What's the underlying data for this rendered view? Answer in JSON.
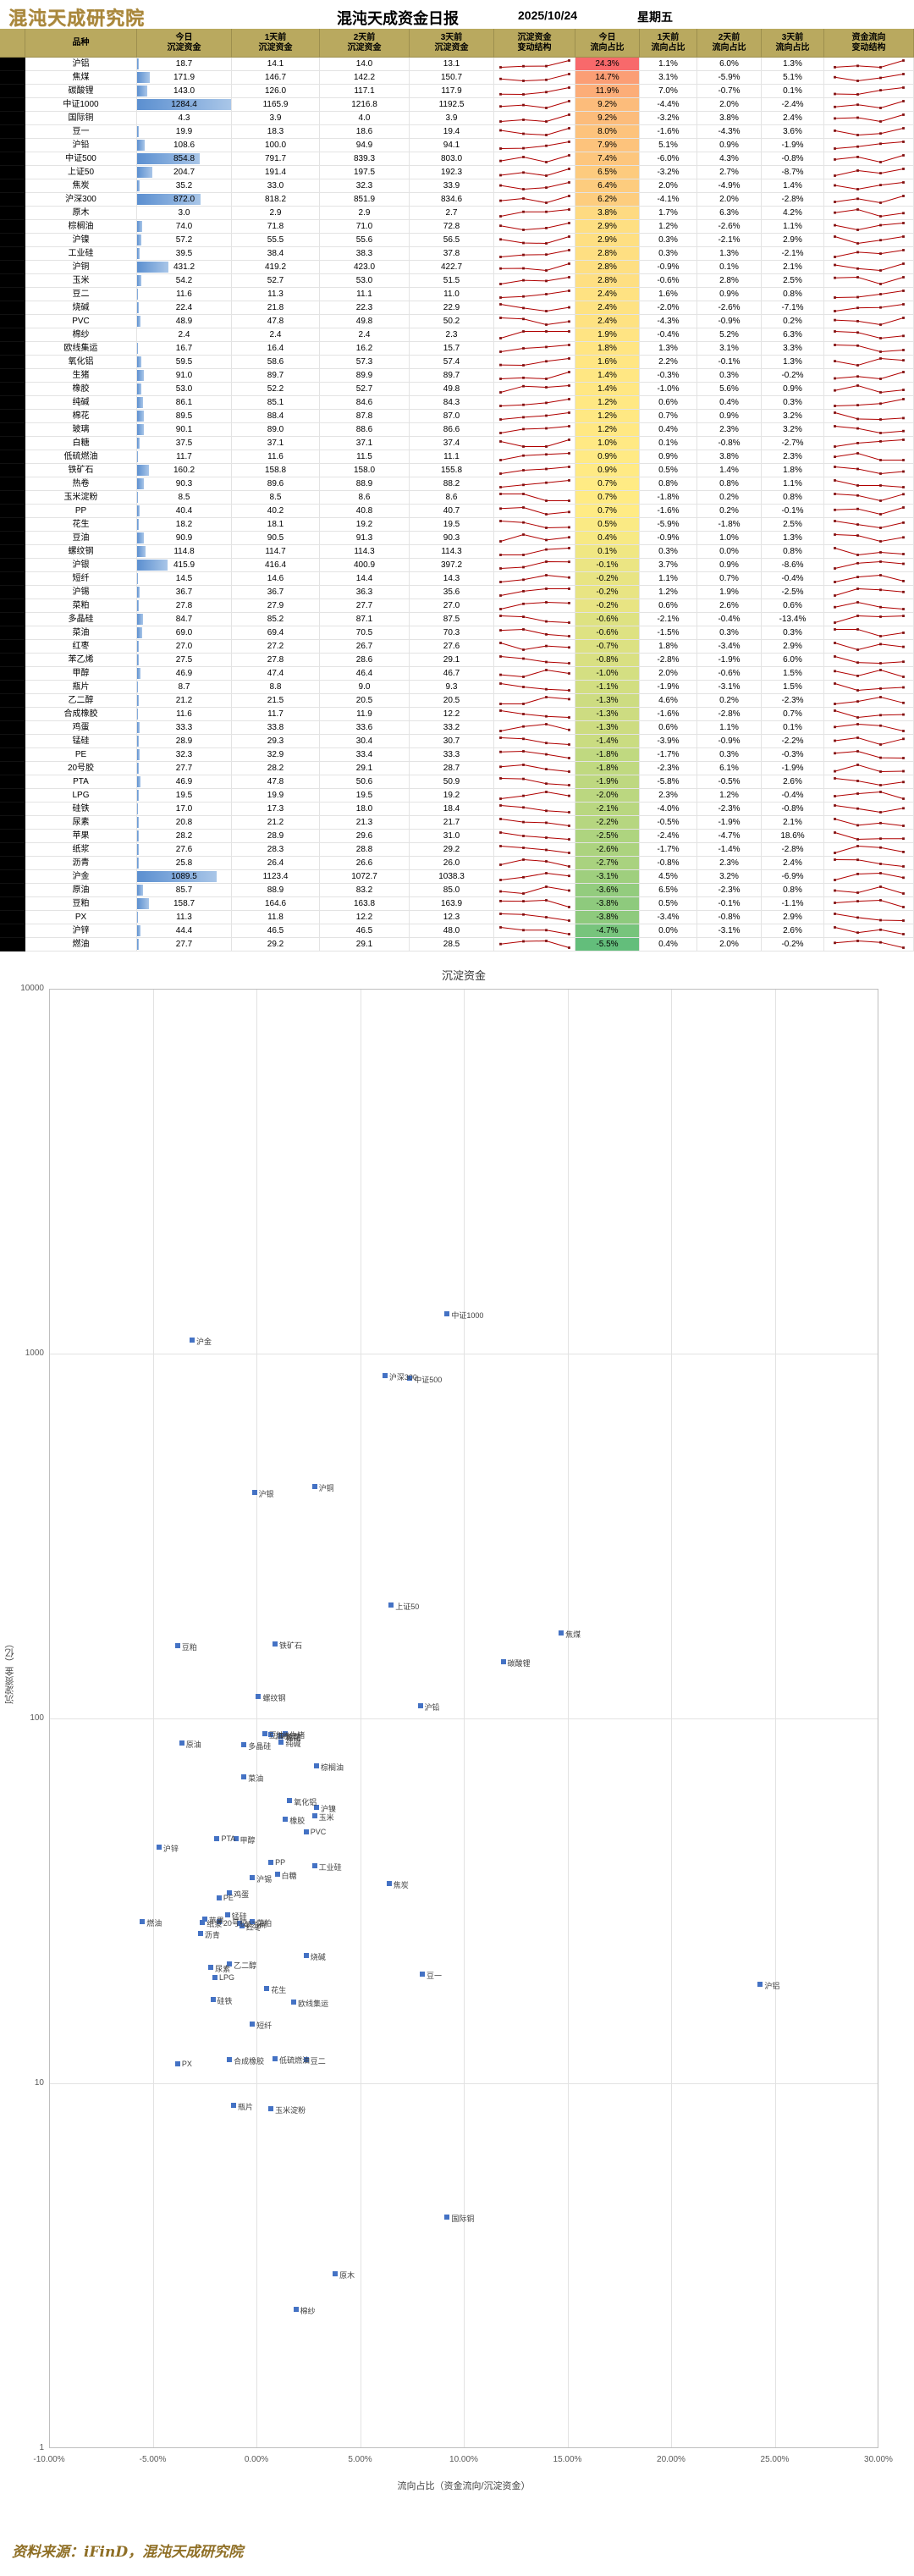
{
  "header": {
    "logo_text": "混沌天成研究院",
    "title": "混沌天成资金日报",
    "date": "2025/10/24",
    "weekday": "星期五"
  },
  "table": {
    "column_headers": [
      "品种",
      "今日\n沉淀资金",
      "1天前\n沉淀资金",
      "2天前\n沉淀资金",
      "3天前\n沉淀资金",
      "沉淀资金\n变动结构",
      "今日\n流向占比",
      "1天前\n流向占比",
      "2天前\n流向占比",
      "3天前\n流向占比",
      "资金流向\n变动结构"
    ],
    "header_bg": "#b9a95f",
    "databar_color": "#5b8fd0",
    "databar_max": 1284.4,
    "spark_color": "#b00000",
    "spark_marker": "#7f1010",
    "color_scale": {
      "min": -5.5,
      "mid": 0.7,
      "max": 24.3,
      "min_color": "#63be7b",
      "mid_color": "#ffeb84",
      "max_color": "#f8696b"
    },
    "rows": [
      {
        "n": "沪铝",
        "f": [
          18.7,
          14.1,
          14.0,
          13.1
        ],
        "p": [
          24.3,
          1.1,
          6.0,
          1.3
        ]
      },
      {
        "n": "焦煤",
        "f": [
          171.9,
          146.7,
          142.2,
          150.7
        ],
        "p": [
          14.7,
          3.1,
          -5.9,
          5.1
        ]
      },
      {
        "n": "碳酸锂",
        "f": [
          143.0,
          126.0,
          117.1,
          117.9
        ],
        "p": [
          11.9,
          7.0,
          -0.7,
          0.1
        ]
      },
      {
        "n": "中证1000",
        "f": [
          1284.4,
          1165.9,
          1216.8,
          1192.5
        ],
        "p": [
          9.2,
          -4.4,
          2.0,
          -2.4
        ]
      },
      {
        "n": "国际铜",
        "f": [
          4.3,
          3.9,
          4.0,
          3.9
        ],
        "p": [
          9.2,
          -3.2,
          3.8,
          2.4
        ]
      },
      {
        "n": "豆一",
        "f": [
          19.9,
          18.3,
          18.6,
          19.4
        ],
        "p": [
          8.0,
          -1.6,
          -4.3,
          3.6
        ]
      },
      {
        "n": "沪铅",
        "f": [
          108.6,
          100.0,
          94.9,
          94.1
        ],
        "p": [
          7.9,
          5.1,
          0.9,
          -1.9
        ]
      },
      {
        "n": "中证500",
        "f": [
          854.8,
          791.7,
          839.3,
          803.0
        ],
        "p": [
          7.4,
          -6.0,
          4.3,
          -0.8
        ]
      },
      {
        "n": "上证50",
        "f": [
          204.7,
          191.4,
          197.5,
          192.3
        ],
        "p": [
          6.5,
          -3.2,
          2.7,
          -8.7
        ]
      },
      {
        "n": "焦炭",
        "f": [
          35.2,
          33.0,
          32.3,
          33.9
        ],
        "p": [
          6.4,
          2.0,
          -4.9,
          1.4
        ]
      },
      {
        "n": "沪深300",
        "f": [
          872.0,
          818.2,
          851.9,
          834.6
        ],
        "p": [
          6.2,
          -4.1,
          2.0,
          -2.8
        ]
      },
      {
        "n": "原木",
        "f": [
          3.0,
          2.9,
          2.9,
          2.7
        ],
        "p": [
          3.8,
          1.7,
          6.3,
          4.2
        ]
      },
      {
        "n": "棕榈油",
        "f": [
          74.0,
          71.8,
          71.0,
          72.8
        ],
        "p": [
          2.9,
          1.2,
          -2.6,
          1.1
        ]
      },
      {
        "n": "沪镍",
        "f": [
          57.2,
          55.5,
          55.6,
          56.5
        ],
        "p": [
          2.9,
          0.3,
          -2.1,
          2.9
        ]
      },
      {
        "n": "工业硅",
        "f": [
          39.5,
          38.4,
          38.3,
          37.8
        ],
        "p": [
          2.8,
          0.3,
          1.3,
          -2.1
        ]
      },
      {
        "n": "沪铜",
        "f": [
          431.2,
          419.2,
          423.0,
          422.7
        ],
        "p": [
          2.8,
          -0.9,
          0.1,
          2.1
        ]
      },
      {
        "n": "玉米",
        "f": [
          54.2,
          52.7,
          53.0,
          51.5
        ],
        "p": [
          2.8,
          -0.6,
          2.8,
          2.5
        ]
      },
      {
        "n": "豆二",
        "f": [
          11.6,
          11.3,
          11.1,
          11.0
        ],
        "p": [
          2.4,
          1.6,
          0.9,
          0.8
        ]
      },
      {
        "n": "烧碱",
        "f": [
          22.4,
          21.8,
          22.3,
          22.9
        ],
        "p": [
          2.4,
          -2.0,
          -2.6,
          -7.1
        ]
      },
      {
        "n": "PVC",
        "f": [
          48.9,
          47.8,
          49.8,
          50.2
        ],
        "p": [
          2.4,
          -4.3,
          -0.9,
          0.2
        ]
      },
      {
        "n": "棉纱",
        "f": [
          2.4,
          2.4,
          2.4,
          2.3
        ],
        "p": [
          1.9,
          -0.4,
          5.2,
          6.3
        ]
      },
      {
        "n": "欧线集运",
        "f": [
          16.7,
          16.4,
          16.2,
          15.7
        ],
        "p": [
          1.8,
          1.3,
          3.1,
          3.3
        ]
      },
      {
        "n": "氧化铝",
        "f": [
          59.5,
          58.6,
          57.3,
          57.4
        ],
        "p": [
          1.6,
          2.2,
          -0.1,
          1.3
        ]
      },
      {
        "n": "生猪",
        "f": [
          91.0,
          89.7,
          89.9,
          89.7
        ],
        "p": [
          1.4,
          -0.3,
          0.3,
          -0.2
        ]
      },
      {
        "n": "橡胶",
        "f": [
          53.0,
          52.2,
          52.7,
          49.8
        ],
        "p": [
          1.4,
          -1.0,
          5.6,
          0.9
        ]
      },
      {
        "n": "纯碱",
        "f": [
          86.1,
          85.1,
          84.6,
          84.3
        ],
        "p": [
          1.2,
          0.6,
          0.4,
          0.3
        ]
      },
      {
        "n": "棉花",
        "f": [
          89.5,
          88.4,
          87.8,
          87.0
        ],
        "p": [
          1.2,
          0.7,
          0.9,
          3.2
        ]
      },
      {
        "n": "玻璃",
        "f": [
          90.1,
          89.0,
          88.6,
          86.6
        ],
        "p": [
          1.2,
          0.4,
          2.3,
          3.2
        ]
      },
      {
        "n": "白糖",
        "f": [
          37.5,
          37.1,
          37.1,
          37.4
        ],
        "p": [
          1.0,
          0.1,
          -0.8,
          -2.7
        ]
      },
      {
        "n": "低硫燃油",
        "f": [
          11.7,
          11.6,
          11.5,
          11.1
        ],
        "p": [
          0.9,
          0.9,
          3.8,
          2.3
        ]
      },
      {
        "n": "铁矿石",
        "f": [
          160.2,
          158.8,
          158.0,
          155.8
        ],
        "p": [
          0.9,
          0.5,
          1.4,
          1.8
        ]
      },
      {
        "n": "热卷",
        "f": [
          90.3,
          89.6,
          88.9,
          88.2
        ],
        "p": [
          0.7,
          0.8,
          0.8,
          1.1
        ]
      },
      {
        "n": "玉米淀粉",
        "f": [
          8.5,
          8.5,
          8.6,
          8.6
        ],
        "p": [
          0.7,
          -1.8,
          0.2,
          0.8
        ]
      },
      {
        "n": "PP",
        "f": [
          40.4,
          40.2,
          40.8,
          40.7
        ],
        "p": [
          0.7,
          -1.6,
          0.2,
          -0.1
        ]
      },
      {
        "n": "花生",
        "f": [
          18.2,
          18.1,
          19.2,
          19.5
        ],
        "p": [
          0.5,
          -5.9,
          -1.8,
          2.5
        ]
      },
      {
        "n": "豆油",
        "f": [
          90.9,
          90.5,
          91.3,
          90.3
        ],
        "p": [
          0.4,
          -0.9,
          1.0,
          1.3
        ]
      },
      {
        "n": "螺纹钢",
        "f": [
          114.8,
          114.7,
          114.3,
          114.3
        ],
        "p": [
          0.1,
          0.3,
          0.0,
          0.8
        ]
      },
      {
        "n": "沪银",
        "f": [
          415.9,
          416.4,
          400.9,
          397.2
        ],
        "p": [
          -0.1,
          3.7,
          0.9,
          -8.6
        ]
      },
      {
        "n": "短纤",
        "f": [
          14.5,
          14.6,
          14.4,
          14.3
        ],
        "p": [
          -0.2,
          1.1,
          0.7,
          -0.4
        ]
      },
      {
        "n": "沪锡",
        "f": [
          36.7,
          36.7,
          36.3,
          35.6
        ],
        "p": [
          -0.2,
          1.2,
          1.9,
          -2.5
        ]
      },
      {
        "n": "菜粕",
        "f": [
          27.8,
          27.9,
          27.7,
          27.0
        ],
        "p": [
          -0.2,
          0.6,
          2.6,
          0.6
        ]
      },
      {
        "n": "多晶硅",
        "f": [
          84.7,
          85.2,
          87.1,
          87.5
        ],
        "p": [
          -0.6,
          -2.1,
          -0.4,
          -13.4
        ]
      },
      {
        "n": "菜油",
        "f": [
          69.0,
          69.4,
          70.5,
          70.3
        ],
        "p": [
          -0.6,
          -1.5,
          0.3,
          0.3
        ]
      },
      {
        "n": "红枣",
        "f": [
          27.0,
          27.2,
          26.7,
          27.6
        ],
        "p": [
          -0.7,
          1.8,
          -3.4,
          2.9
        ]
      },
      {
        "n": "苯乙烯",
        "f": [
          27.5,
          27.8,
          28.6,
          29.1
        ],
        "p": [
          -0.8,
          -2.8,
          -1.9,
          6.0
        ]
      },
      {
        "n": "甲醇",
        "f": [
          46.9,
          47.4,
          46.4,
          46.7
        ],
        "p": [
          -1.0,
          2.0,
          -0.6,
          1.5
        ]
      },
      {
        "n": "瓶片",
        "f": [
          8.7,
          8.8,
          9.0,
          9.3
        ],
        "p": [
          -1.1,
          -1.9,
          -3.1,
          1.5
        ]
      },
      {
        "n": "乙二醇",
        "f": [
          21.2,
          21.5,
          20.5,
          20.5
        ],
        "p": [
          -1.3,
          4.6,
          0.2,
          -2.3
        ]
      },
      {
        "n": "合成橡胶",
        "f": [
          11.6,
          11.7,
          11.9,
          12.2
        ],
        "p": [
          -1.3,
          -1.6,
          -2.8,
          0.7
        ]
      },
      {
        "n": "鸡蛋",
        "f": [
          33.3,
          33.8,
          33.6,
          33.2
        ],
        "p": [
          -1.3,
          0.6,
          1.1,
          0.1
        ]
      },
      {
        "n": "锰硅",
        "f": [
          28.9,
          29.3,
          30.4,
          30.7
        ],
        "p": [
          -1.4,
          -3.9,
          -0.9,
          -2.2
        ]
      },
      {
        "n": "PE",
        "f": [
          32.3,
          32.9,
          33.4,
          33.3
        ],
        "p": [
          -1.8,
          -1.7,
          0.3,
          -0.3
        ]
      },
      {
        "n": "20号胶",
        "f": [
          27.7,
          28.2,
          29.1,
          28.7
        ],
        "p": [
          -1.8,
          -2.3,
          6.1,
          -1.9
        ]
      },
      {
        "n": "PTA",
        "f": [
          46.9,
          47.8,
          50.6,
          50.9
        ],
        "p": [
          -1.9,
          -5.8,
          -0.5,
          2.6
        ]
      },
      {
        "n": "LPG",
        "f": [
          19.5,
          19.9,
          19.5,
          19.2
        ],
        "p": [
          -2.0,
          2.3,
          1.2,
          -0.4
        ]
      },
      {
        "n": "硅铁",
        "f": [
          17.0,
          17.3,
          18.0,
          18.4
        ],
        "p": [
          -2.1,
          -4.0,
          -2.3,
          -0.8
        ]
      },
      {
        "n": "尿素",
        "f": [
          20.8,
          21.2,
          21.3,
          21.7
        ],
        "p": [
          -2.2,
          -0.5,
          -1.9,
          2.1
        ]
      },
      {
        "n": "苹果",
        "f": [
          28.2,
          28.9,
          29.6,
          31.0
        ],
        "p": [
          -2.5,
          -2.4,
          -4.7,
          18.6
        ]
      },
      {
        "n": "纸浆",
        "f": [
          27.6,
          28.3,
          28.8,
          29.2
        ],
        "p": [
          -2.6,
          -1.7,
          -1.4,
          -2.8
        ]
      },
      {
        "n": "沥青",
        "f": [
          25.8,
          26.4,
          26.6,
          26.0
        ],
        "p": [
          -2.7,
          -0.8,
          2.3,
          2.4
        ]
      },
      {
        "n": "沪金",
        "f": [
          1089.5,
          1123.4,
          1072.7,
          1038.3
        ],
        "p": [
          -3.1,
          4.5,
          3.2,
          -6.9
        ]
      },
      {
        "n": "原油",
        "f": [
          85.7,
          88.9,
          83.2,
          85.0
        ],
        "p": [
          -3.6,
          6.5,
          -2.3,
          0.8
        ]
      },
      {
        "n": "豆粕",
        "f": [
          158.7,
          164.6,
          163.8,
          163.9
        ],
        "p": [
          -3.8,
          0.5,
          -0.1,
          -1.1
        ]
      },
      {
        "n": "PX",
        "f": [
          11.3,
          11.8,
          12.2,
          12.3
        ],
        "p": [
          -3.8,
          -3.4,
          -0.8,
          2.9
        ]
      },
      {
        "n": "沪锌",
        "f": [
          44.4,
          46.5,
          46.5,
          48.0
        ],
        "p": [
          -4.7,
          0.0,
          -3.1,
          2.6
        ]
      },
      {
        "n": "燃油",
        "f": [
          27.7,
          29.2,
          29.1,
          28.5
        ],
        "p": [
          -5.5,
          0.4,
          2.0,
          -0.2
        ]
      }
    ]
  },
  "chart_data": {
    "type": "scatter",
    "title": "沉淀资金",
    "xlabel": "流向占比（资金流向/沉淀资金）",
    "ylabel": "沉淀资金（亿）",
    "x_ticks_labels": [
      "-10.00%",
      "-5.00%",
      "0.00%",
      "5.00%",
      "10.00%",
      "15.00%",
      "20.00%",
      "25.00%",
      "30.00%"
    ],
    "x_ticks_values": [
      -10,
      -5,
      0,
      5,
      10,
      15,
      20,
      25,
      30
    ],
    "y_ticks": [
      10000,
      1000,
      100,
      10,
      1
    ],
    "y_scale": "log",
    "xlim": [
      -10,
      30
    ],
    "ylim": [
      1,
      10000
    ],
    "marker_color": "#4472c4",
    "points_from": "table.rows: x=今日流向占比, y=今日沉淀资金"
  },
  "footer": {
    "source": "资料来源：iFinD，混沌天成研究院"
  }
}
